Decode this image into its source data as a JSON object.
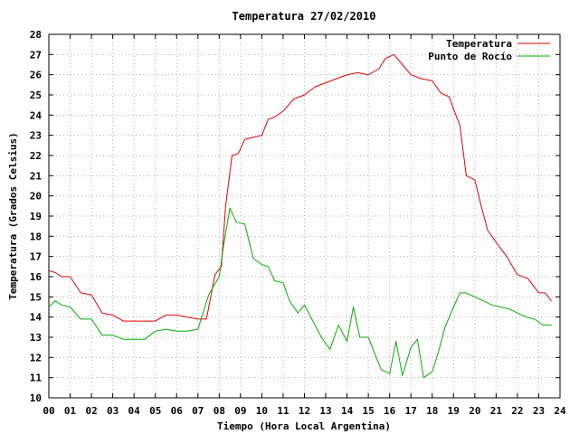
{
  "chart_data": {
    "type": "line",
    "title": "Temperatura 27/02/2010",
    "xlabel": "Tiempo (Hora Local Argentina)",
    "ylabel": "Temperatura (Grados Celsius)",
    "xlim": [
      0,
      24
    ],
    "ylim": [
      10,
      28
    ],
    "x_ticks": [
      "00",
      "01",
      "02",
      "03",
      "04",
      "05",
      "06",
      "07",
      "08",
      "09",
      "10",
      "11",
      "12",
      "13",
      "14",
      "15",
      "16",
      "17",
      "18",
      "19",
      "20",
      "21",
      "22",
      "23",
      "24"
    ],
    "y_ticks": [
      10,
      11,
      12,
      13,
      14,
      15,
      16,
      17,
      18,
      19,
      20,
      21,
      22,
      23,
      24,
      25,
      26,
      27,
      28
    ],
    "grid": true,
    "legend_position": "top-right",
    "series": [
      {
        "name": "Temperatura",
        "color": "#e00000",
        "x": [
          0,
          0.3,
          0.6,
          1.0,
          1.5,
          2.0,
          2.5,
          3.0,
          3.5,
          4.0,
          4.5,
          5.0,
          5.5,
          6.0,
          6.5,
          7.0,
          7.4,
          7.8,
          8.1,
          8.3,
          8.6,
          8.9,
          9.2,
          9.6,
          10.0,
          10.3,
          10.6,
          11.0,
          11.5,
          12.0,
          12.5,
          13.0,
          13.5,
          14.0,
          14.5,
          15.0,
          15.5,
          15.8,
          16.2,
          16.6,
          17.0,
          17.5,
          18.0,
          18.4,
          18.8,
          19.0,
          19.3,
          19.6,
          20.0,
          20.3,
          20.6,
          21.0,
          21.5,
          22.0,
          22.5,
          23.0,
          23.3,
          23.6
        ],
        "y": [
          16.3,
          16.2,
          16.0,
          16.0,
          15.2,
          15.1,
          14.2,
          14.1,
          13.8,
          13.8,
          13.8,
          13.8,
          14.1,
          14.1,
          14.0,
          13.9,
          13.9,
          16.1,
          16.5,
          19.5,
          22.0,
          22.1,
          22.8,
          22.9,
          23.0,
          23.8,
          23.9,
          24.2,
          24.8,
          25.0,
          25.4,
          25.6,
          25.8,
          26.0,
          26.1,
          26.0,
          26.3,
          26.8,
          27.0,
          26.5,
          26.0,
          25.8,
          25.7,
          25.1,
          24.9,
          24.3,
          23.5,
          21.0,
          20.8,
          19.5,
          18.3,
          17.7,
          17.0,
          16.1,
          15.9,
          15.2,
          15.2,
          14.8
        ]
      },
      {
        "name": "Punto de Rocío",
        "color": "#00b000",
        "x": [
          0,
          0.3,
          0.6,
          1.0,
          1.5,
          2.0,
          2.5,
          3.0,
          3.5,
          4.0,
          4.5,
          5.0,
          5.5,
          6.0,
          6.5,
          7.0,
          7.5,
          8.0,
          8.2,
          8.5,
          8.8,
          9.2,
          9.6,
          10.0,
          10.3,
          10.6,
          11.0,
          11.3,
          11.7,
          12.0,
          12.4,
          12.8,
          13.2,
          13.6,
          14.0,
          14.3,
          14.6,
          15.0,
          15.3,
          15.6,
          16.0,
          16.3,
          16.6,
          17.0,
          17.3,
          17.6,
          18.0,
          18.3,
          18.6,
          19.0,
          19.3,
          19.6,
          20.0,
          20.4,
          20.8,
          21.2,
          21.6,
          22.0,
          22.4,
          22.8,
          23.2,
          23.6
        ],
        "y": [
          14.5,
          14.8,
          14.6,
          14.5,
          13.9,
          13.9,
          13.1,
          13.1,
          12.9,
          12.9,
          12.9,
          13.3,
          13.4,
          13.3,
          13.3,
          13.4,
          15.1,
          16.0,
          17.5,
          19.4,
          18.7,
          18.6,
          16.9,
          16.6,
          16.5,
          15.8,
          15.7,
          14.8,
          14.2,
          14.6,
          13.8,
          13.0,
          12.4,
          13.6,
          12.8,
          14.5,
          13.0,
          13.0,
          12.2,
          11.4,
          11.2,
          12.8,
          11.1,
          12.5,
          12.9,
          11.0,
          11.3,
          12.3,
          13.5,
          14.5,
          15.2,
          15.2,
          15.0,
          14.8,
          14.6,
          14.5,
          14.4,
          14.2,
          14.0,
          13.9,
          13.6,
          13.6
        ]
      }
    ]
  }
}
